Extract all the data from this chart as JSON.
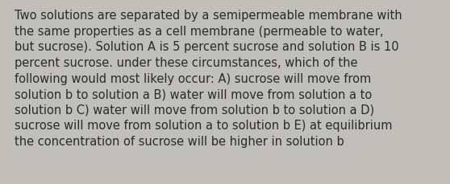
{
  "lines": [
    "Two solutions are separated by a semipermeable membrane with",
    "the same properties as a cell membrane (permeable to water,",
    "but sucrose). Solution A is 5 percent sucrose and solution B is 10",
    "percent sucrose. under these circumstances, which of the",
    "following would most likely occur: A) sucrose will move from",
    "solution b to solution a B) water will move from solution a to",
    "solution b C) water will move from solution b to solution a D)",
    "sucrose will move from solution a to solution b E) at equilibrium",
    "the concentration of sucrose will be higher in solution b"
  ],
  "background_color": "#c0bfba",
  "text_color": "#2a2a2a",
  "font_size": 10.5,
  "fig_width": 5.58,
  "fig_height": 2.3,
  "dpi": 100
}
